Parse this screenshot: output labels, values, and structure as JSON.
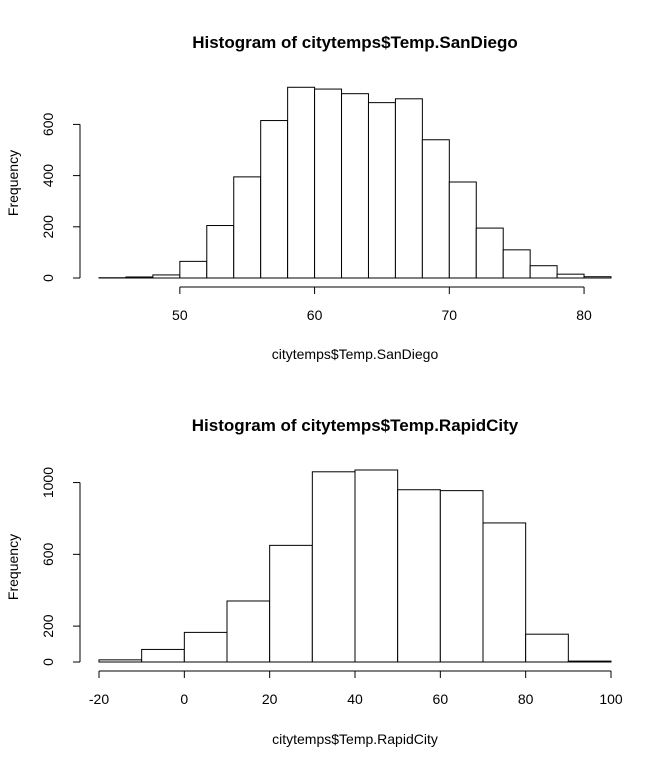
{
  "chart_data": [
    {
      "type": "bar",
      "title": "Histogram of citytemps$Temp.SanDiego",
      "xlabel": "citytemps$Temp.SanDiego",
      "ylabel": "Frequency",
      "x_ticks": [
        50,
        60,
        70,
        80
      ],
      "y_ticks": [
        0,
        200,
        400,
        600
      ],
      "bin_edges": [
        44,
        46,
        48,
        50,
        52,
        54,
        56,
        58,
        60,
        62,
        64,
        66,
        68,
        70,
        72,
        74,
        76,
        78,
        80,
        82
      ],
      "values": [
        1,
        4,
        12,
        65,
        205,
        395,
        615,
        745,
        738,
        720,
        685,
        700,
        540,
        375,
        195,
        110,
        48,
        15,
        5
      ],
      "xlim": [
        44,
        82
      ],
      "ylim": [
        0,
        750
      ]
    },
    {
      "type": "bar",
      "title": "Histogram of citytemps$Temp.RapidCity",
      "xlabel": "citytemps$Temp.RapidCity",
      "ylabel": "Frequency",
      "x_ticks": [
        -20,
        0,
        20,
        40,
        60,
        80,
        100
      ],
      "y_ticks": [
        0,
        200,
        600,
        1000
      ],
      "bin_edges": [
        -20,
        -10,
        0,
        10,
        20,
        30,
        40,
        50,
        60,
        70,
        80,
        90,
        100
      ],
      "values": [
        12,
        70,
        165,
        340,
        650,
        1060,
        1070,
        960,
        955,
        775,
        155,
        5
      ],
      "xlim": [
        -20,
        100
      ],
      "ylim": [
        0,
        1070
      ]
    }
  ]
}
